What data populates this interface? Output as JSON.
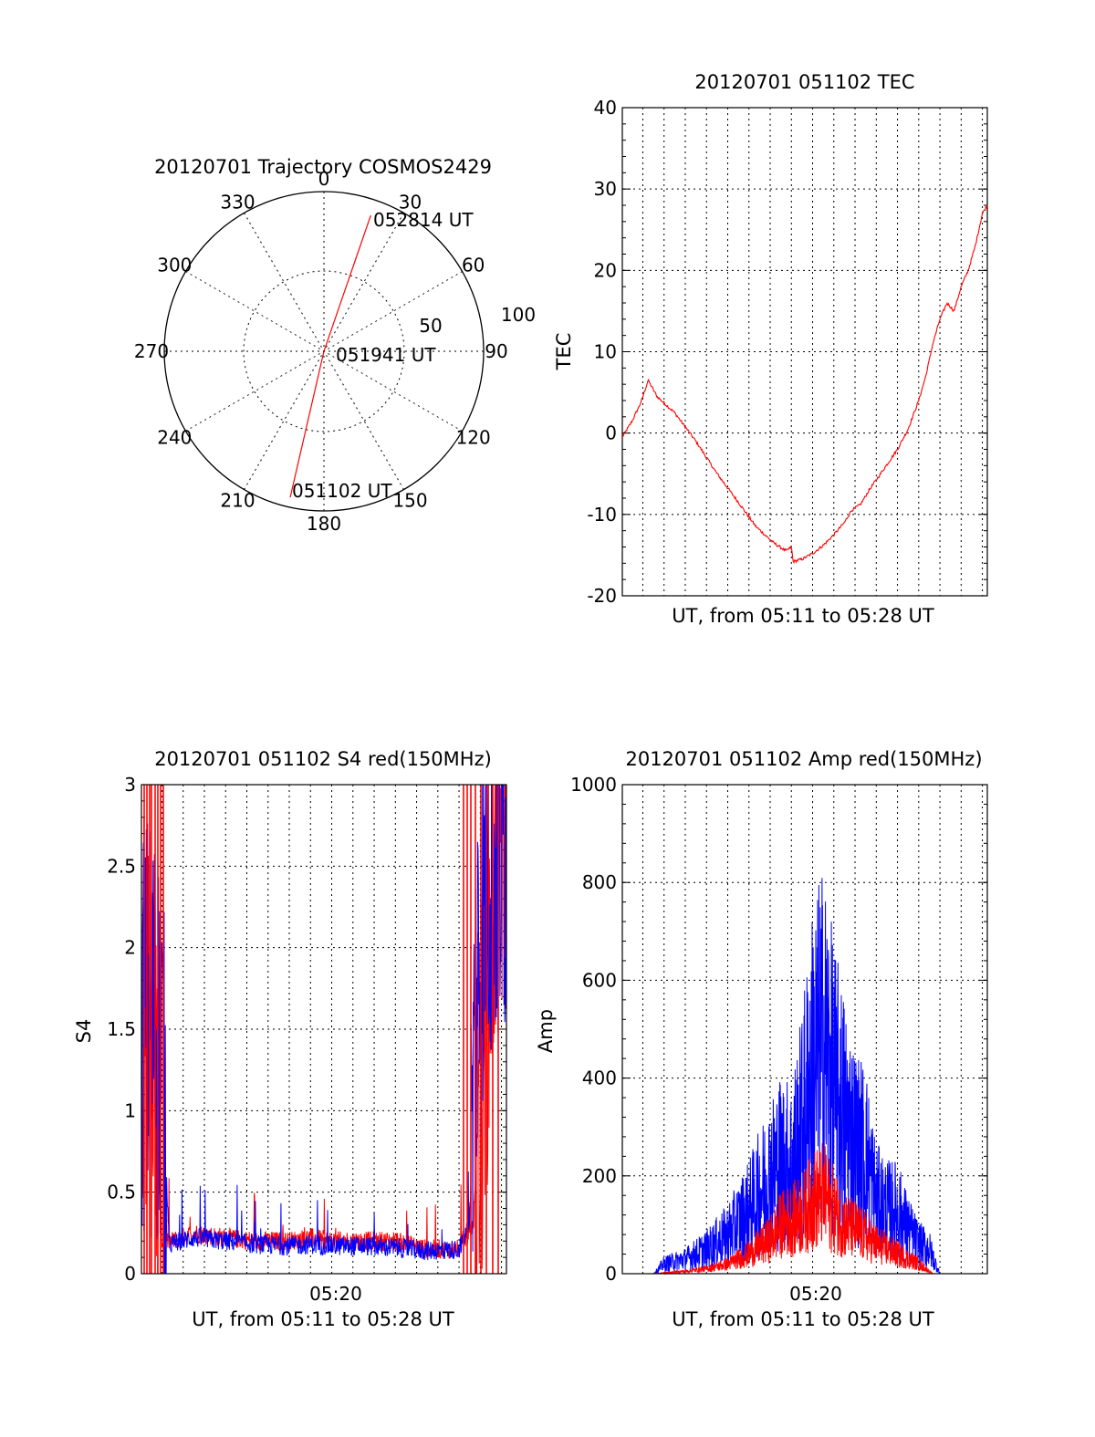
{
  "colors": {
    "red": "#ff0000",
    "blue": "#0000ff",
    "axis": "#000000"
  },
  "chart_data": [
    {
      "id": "polar",
      "type": "scatter",
      "title": "20120701 Trajectory COSMOS2429",
      "angle_labels": [
        "0",
        "30",
        "60",
        "90",
        "120",
        "150",
        "180",
        "210",
        "240",
        "270",
        "300",
        "330"
      ],
      "radius_labels": [
        "50",
        "100"
      ],
      "trajectory": [
        {
          "azimuth_deg": 193,
          "zenith": 94,
          "label": "051102 UT"
        },
        {
          "azimuth_deg": 0,
          "zenith": 0,
          "label": "051941 UT"
        },
        {
          "azimuth_deg": 19,
          "zenith": 90,
          "label": "052814 UT"
        }
      ]
    },
    {
      "id": "tec",
      "type": "line",
      "title": "20120701 051102 TEC",
      "xlabel": "UT, from 05:11 to 05:28 UT",
      "ylabel": "TEC",
      "xlim": [
        "05:11:02",
        "05:28:14"
      ],
      "ylim": [
        -20,
        40
      ],
      "yticks": [
        "-20",
        "-10",
        "0",
        "10",
        "20",
        "30",
        "40"
      ],
      "grid": true,
      "series": [
        {
          "color": "red",
          "x": [
            "05:11:02",
            "05:11:30",
            "05:11:55",
            "05:12:15",
            "05:12:40",
            "05:13:30",
            "05:14:30",
            "05:15:30",
            "05:16:30",
            "05:17:20",
            "05:18:10",
            "05:18:45",
            "05:19:00",
            "05:19:05",
            "05:19:30",
            "05:20:00",
            "05:20:30",
            "05:21:00",
            "05:21:30",
            "05:21:50",
            "05:22:15",
            "05:22:40",
            "05:23:20",
            "05:24:00",
            "05:24:30",
            "05:25:00",
            "05:25:20",
            "05:25:40",
            "05:26:00",
            "05:26:20",
            "05:26:40",
            "05:27:00",
            "05:27:20",
            "05:27:40",
            "05:28:00",
            "05:28:14"
          ],
          "values": [
            -0.5,
            1.5,
            3.8,
            6.5,
            4.5,
            2.5,
            -1,
            -5,
            -8.5,
            -11.5,
            -13.5,
            -14.5,
            -14,
            -15.8,
            -15.5,
            -14.8,
            -13.8,
            -12.5,
            -11,
            -9.5,
            -8.8,
            -7,
            -4.5,
            -2,
            0.5,
            4,
            7,
            11,
            14,
            16,
            15,
            18,
            20,
            23,
            27,
            28
          ]
        }
      ]
    },
    {
      "id": "s4",
      "type": "line",
      "title": "20120701 051102 S4 red(150MHz)",
      "xlabel": "UT, from 05:11 to 05:28 UT",
      "ylabel": "S4",
      "xtick_label": "05:20",
      "xlim": [
        "05:11:02",
        "05:28:14"
      ],
      "ylim": [
        0,
        3
      ],
      "yticks": [
        "0",
        "0.5",
        "1",
        "1.5",
        "2",
        "2.5",
        "3"
      ],
      "grid": true,
      "series": [
        {
          "color": "red",
          "x": [
            "05:11:02",
            "05:11:40",
            "05:12:00",
            "05:12:30",
            "05:13:30",
            "05:15:00",
            "05:16:30",
            "05:18:00",
            "05:19:00",
            "05:20:00",
            "05:21:30",
            "05:23:00",
            "05:24:30",
            "05:26:00",
            "05:26:40",
            "05:27:10",
            "05:27:40",
            "05:28:14"
          ],
          "values": [
            1.6,
            1.4,
            0.2,
            0.2,
            0.25,
            0.22,
            0.2,
            0.2,
            0.22,
            0.2,
            0.2,
            0.2,
            0.15,
            0.15,
            0.3,
            1.5,
            2.5,
            2.8
          ]
        },
        {
          "color": "blue",
          "x": [
            "05:11:02",
            "05:11:30",
            "05:12:00",
            "05:12:20",
            "05:13:30",
            "05:15:00",
            "05:16:30",
            "05:18:00",
            "05:19:00",
            "05:20:00",
            "05:21:30",
            "05:23:00",
            "05:24:30",
            "05:26:00",
            "05:26:30",
            "05:26:50",
            "05:27:20",
            "05:27:50",
            "05:28:14"
          ],
          "values": [
            1.5,
            1.6,
            1.3,
            0.18,
            0.22,
            0.2,
            0.18,
            0.17,
            0.18,
            0.17,
            0.17,
            0.16,
            0.14,
            0.15,
            0.3,
            1.8,
            2.5,
            2.6,
            2.7
          ]
        }
      ]
    },
    {
      "id": "amp",
      "type": "line",
      "title": "20120701 051102 Amp red(150MHz)",
      "xlabel": "UT, from 05:11 to 05:28 UT",
      "ylabel": "Amp",
      "xtick_label": "05:20",
      "xlim": [
        "05:11:02",
        "05:28:14"
      ],
      "ylim": [
        0,
        1000
      ],
      "yticks": [
        "0",
        "200",
        "400",
        "600",
        "800",
        "1000"
      ],
      "grid": true,
      "series": [
        {
          "color": "blue",
          "x": [
            "05:11:02",
            "05:12:30",
            "05:13:00",
            "05:14:00",
            "05:15:00",
            "05:16:00",
            "05:17:00",
            "05:18:00",
            "05:18:30",
            "05:19:00",
            "05:19:30",
            "05:20:00",
            "05:20:30",
            "05:21:00",
            "05:21:30",
            "05:22:00",
            "05:22:30",
            "05:23:00",
            "05:23:30",
            "05:24:00",
            "05:24:30",
            "05:25:00",
            "05:25:30",
            "05:26:00",
            "05:28:14"
          ],
          "values": [
            0,
            0,
            20,
            30,
            50,
            80,
            130,
            200,
            230,
            220,
            300,
            420,
            470,
            380,
            320,
            260,
            240,
            150,
            130,
            130,
            90,
            60,
            50,
            0,
            0
          ]
        },
        {
          "color": "red",
          "x": [
            "05:11:02",
            "05:12:30",
            "05:14:00",
            "05:15:00",
            "05:16:00",
            "05:17:00",
            "05:18:00",
            "05:18:30",
            "05:19:00",
            "05:19:30",
            "05:20:00",
            "05:20:30",
            "05:21:00",
            "05:21:30",
            "05:22:00",
            "05:23:00",
            "05:24:00",
            "05:25:00",
            "05:25:40",
            "05:28:14"
          ],
          "values": [
            0,
            0,
            5,
            10,
            20,
            40,
            70,
            100,
            110,
            120,
            150,
            160,
            130,
            100,
            90,
            60,
            40,
            20,
            0,
            0
          ]
        }
      ]
    }
  ]
}
